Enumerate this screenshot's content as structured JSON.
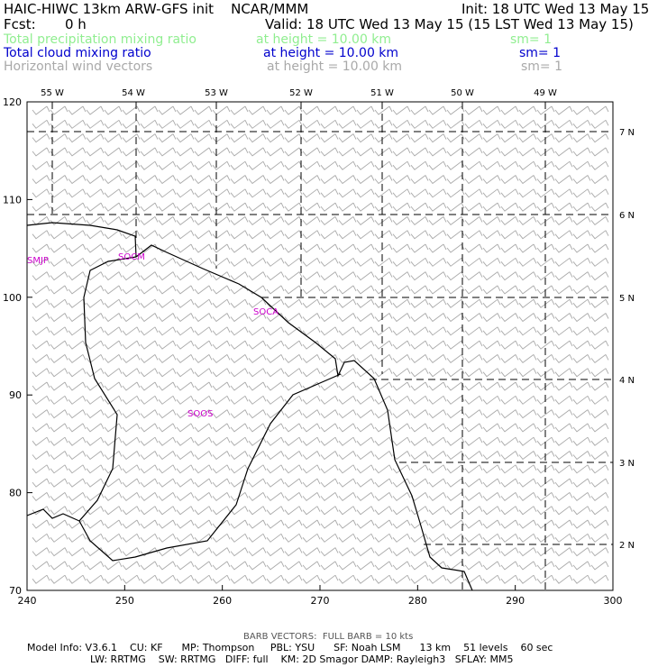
{
  "header": {
    "title": "HAIC-HIWC 13km ARW-GFS init    NCAR/MMM",
    "init": "Init: 18 UTC Wed 13 May 15",
    "fcst_label": "Fcst:",
    "fcst_value": "0 h",
    "valid": "Valid: 18 UTC Wed 13 May 15 (15 LST Wed 13 May 15)",
    "fields": [
      {
        "name": "Total precipitation mixing ratio",
        "height": "at height = 10.00 km",
        "sm": "sm= 1",
        "color": "#90ee90"
      },
      {
        "name": "Total cloud mixing ratio",
        "height": "at height = 10.00 km",
        "sm": "sm= 1",
        "color": "#0000cd"
      },
      {
        "name": "Horizontal wind vectors",
        "height": "at height = 10.00 km",
        "sm": "sm= 1",
        "color": "#a9a9a9"
      }
    ]
  },
  "map": {
    "x_ticks": [
      "240",
      "250",
      "260",
      "270",
      "280",
      "290",
      "300"
    ],
    "y_ticks": [
      "70",
      "80",
      "90",
      "100",
      "110",
      "120"
    ],
    "lon_labels": [
      "55 W",
      "54 W",
      "53 W",
      "52 W",
      "51 W",
      "50 W",
      "49 W"
    ],
    "lat_labels": [
      "7 N",
      "6 N",
      "5 N",
      "4 N",
      "3 N",
      "2 N"
    ],
    "region_labels": [
      {
        "text": "SMJP",
        "id": "smjp"
      },
      {
        "text": "SOCM",
        "id": "socm"
      },
      {
        "text": "SOCA",
        "id": "soca"
      },
      {
        "text": "SOOS",
        "id": "soos"
      }
    ],
    "colors": {
      "barbs": "#a9a9a9",
      "labels": "#cc00cc",
      "coast": "#000000",
      "grid": "#000000"
    }
  },
  "footer": {
    "barb_note": "BARB VECTORS:  FULL BARB = 10 kts",
    "line1": "Model Info: V3.6.1    CU: KF      MP: Thompson     PBL: YSU      SF: Noah LSM      13 km    51 levels    60 sec",
    "line2": "LW: RRTMG    SW: RRTMG   DIFF: full    KM: 2D Smagor DAMP: Rayleigh3   SFLAY: MM5"
  }
}
